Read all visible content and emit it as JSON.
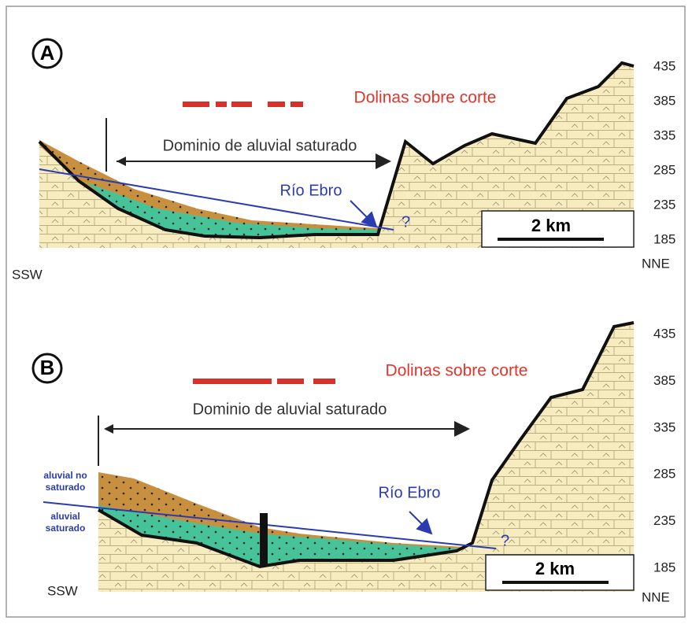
{
  "panels": [
    {
      "label": "A",
      "sinkholes": "Dolinas sobre corte",
      "domain": "Dominio de aluvial saturado",
      "river": "Río Ebro",
      "question": "?",
      "scale": "2 km",
      "left": "SSW",
      "right": "NNE",
      "elevations": [
        435,
        385,
        335,
        285,
        235,
        185
      ]
    },
    {
      "label": "B",
      "sinkholes": "Dolinas sobre corte",
      "domain": "Dominio de aluvial saturado",
      "river": "Río Ebro",
      "question": "?",
      "scale": "2 km",
      "left": "SSW",
      "right": "NNE",
      "elevations": [
        435,
        385,
        335,
        285,
        235,
        185
      ],
      "unsaturated": [
        "aluvial no",
        "saturado"
      ],
      "saturated": [
        "aluvial",
        "saturado"
      ]
    }
  ]
}
